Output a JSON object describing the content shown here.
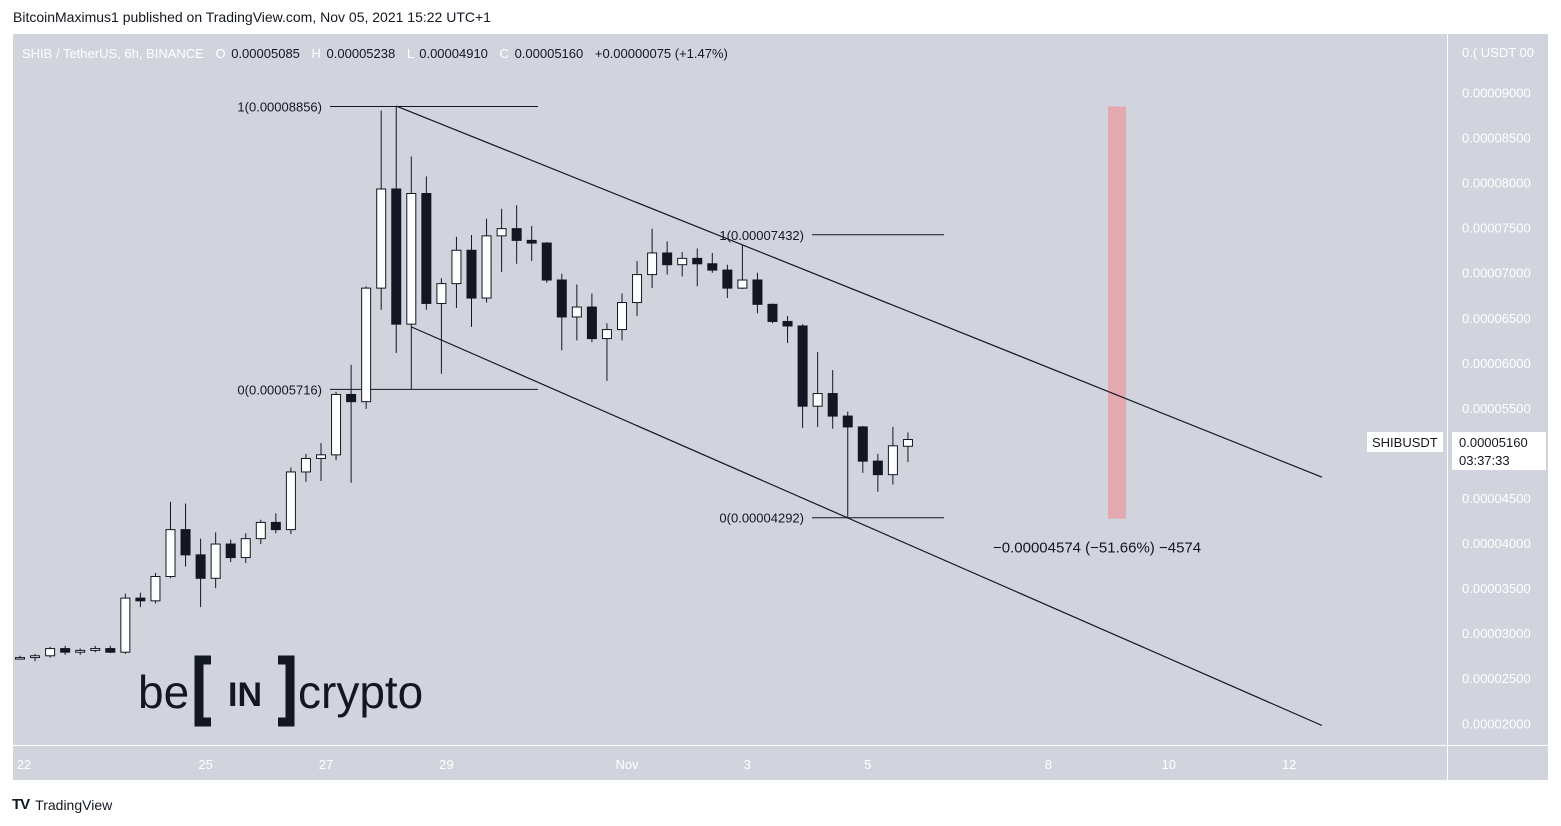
{
  "header": {
    "publisher": "BitcoinMaximus1 published on TradingView.com, Nov 05, 2021 15:22 UTC+1"
  },
  "colors": {
    "background": "#d1d4dc",
    "candle_up": "#ffffff",
    "candle_down": "#131722",
    "target_zone": "#e8a0a8"
  },
  "chart_data": {
    "type": "candlestick",
    "symbol_line": {
      "symbol": "SHIB / TetherUS, 6h, BINANCE",
      "open_label": "O",
      "open": "0.00005085",
      "high_label": "H",
      "high": "0.00005238",
      "low_label": "L",
      "low": "0.00004910",
      "close_label": "C",
      "close": "0.00005160",
      "change": "+0.00000075 (+1.47%)"
    },
    "currency_label": "0.( USDT 00",
    "y_axis": {
      "range": [
        1.77e-05,
        9.66e-05
      ],
      "ticks": [
        "0.00009000",
        "0.00008500",
        "0.00008000",
        "0.00007500",
        "0.00007000",
        "0.00006500",
        "0.00006000",
        "0.00005500",
        "0.00005000",
        "0.00004500",
        "0.00004000",
        "0.00003500",
        "0.00003000",
        "0.00002500",
        "0.00002000"
      ]
    },
    "x_axis": {
      "ticks": [
        {
          "label": "22",
          "day": 22
        },
        {
          "label": "25",
          "day": 25
        },
        {
          "label": "27",
          "day": 27
        },
        {
          "label": "29",
          "day": 29
        },
        {
          "label": "Nov",
          "day": 32
        },
        {
          "label": "3",
          "day": 34
        },
        {
          "label": "5",
          "day": 36
        },
        {
          "label": "8",
          "day": 39
        },
        {
          "label": "10",
          "day": 41
        },
        {
          "label": "12",
          "day": 43
        }
      ]
    },
    "candles": [
      {
        "o": 2.73e-05,
        "h": 2.76e-05,
        "l": 2.72e-05,
        "c": 2.74e-05
      },
      {
        "o": 2.74e-05,
        "h": 2.78e-05,
        "l": 2.7e-05,
        "c": 2.76e-05
      },
      {
        "o": 2.76e-05,
        "h": 2.86e-05,
        "l": 2.74e-05,
        "c": 2.84e-05
      },
      {
        "o": 2.84e-05,
        "h": 2.87e-05,
        "l": 2.77e-05,
        "c": 2.8e-05
      },
      {
        "o": 2.8e-05,
        "h": 2.84e-05,
        "l": 2.77e-05,
        "c": 2.82e-05
      },
      {
        "o": 2.82e-05,
        "h": 2.87e-05,
        "l": 2.8e-05,
        "c": 2.84e-05
      },
      {
        "o": 2.84e-05,
        "h": 2.87e-05,
        "l": 2.79e-05,
        "c": 2.8e-05
      },
      {
        "o": 2.8e-05,
        "h": 3.45e-05,
        "l": 2.78e-05,
        "c": 3.4e-05
      },
      {
        "o": 3.4e-05,
        "h": 3.46e-05,
        "l": 3.3e-05,
        "c": 3.37e-05
      },
      {
        "o": 3.37e-05,
        "h": 3.68e-05,
        "l": 3.34e-05,
        "c": 3.64e-05
      },
      {
        "o": 3.64e-05,
        "h": 4.47e-05,
        "l": 3.62e-05,
        "c": 4.16e-05
      },
      {
        "o": 4.16e-05,
        "h": 4.45e-05,
        "l": 3.75e-05,
        "c": 3.88e-05
      },
      {
        "o": 3.88e-05,
        "h": 4.06e-05,
        "l": 3.3e-05,
        "c": 3.62e-05
      },
      {
        "o": 3.62e-05,
        "h": 4.13e-05,
        "l": 3.51e-05,
        "c": 4e-05
      },
      {
        "o": 4e-05,
        "h": 4.05e-05,
        "l": 3.8e-05,
        "c": 3.85e-05
      },
      {
        "o": 3.85e-05,
        "h": 4.12e-05,
        "l": 3.79e-05,
        "c": 4.06e-05
      },
      {
        "o": 4.06e-05,
        "h": 4.27e-05,
        "l": 4e-05,
        "c": 4.24e-05
      },
      {
        "o": 4.24e-05,
        "h": 4.34e-05,
        "l": 4.12e-05,
        "c": 4.16e-05
      },
      {
        "o": 4.16e-05,
        "h": 4.85e-05,
        "l": 4.11e-05,
        "c": 4.8e-05
      },
      {
        "o": 4.8e-05,
        "h": 5e-05,
        "l": 4.69e-05,
        "c": 4.95e-05
      },
      {
        "o": 4.95e-05,
        "h": 5.12e-05,
        "l": 4.7e-05,
        "c": 4.99e-05
      },
      {
        "o": 4.99e-05,
        "h": 5.69e-05,
        "l": 4.93e-05,
        "c": 5.66e-05
      },
      {
        "o": 5.66e-05,
        "h": 5.99e-05,
        "l": 4.68e-05,
        "c": 5.58e-05
      },
      {
        "o": 5.58e-05,
        "h": 6.86e-05,
        "l": 5.5e-05,
        "c": 6.84e-05
      },
      {
        "o": 6.84e-05,
        "h": 8.81e-05,
        "l": 6.6e-05,
        "c": 7.94e-05
      },
      {
        "o": 7.94e-05,
        "h": 8.86e-05,
        "l": 6.12e-05,
        "c": 6.44e-05
      },
      {
        "o": 6.44e-05,
        "h": 8.3e-05,
        "l": 5.72e-05,
        "c": 7.89e-05
      },
      {
        "o": 7.89e-05,
        "h": 8.08e-05,
        "l": 6.6e-05,
        "c": 6.67e-05
      },
      {
        "o": 6.67e-05,
        "h": 6.95e-05,
        "l": 5.89e-05,
        "c": 6.89e-05
      },
      {
        "o": 6.89e-05,
        "h": 7.41e-05,
        "l": 6.62e-05,
        "c": 7.26e-05
      },
      {
        "o": 7.26e-05,
        "h": 7.43e-05,
        "l": 6.41e-05,
        "c": 6.73e-05
      },
      {
        "o": 6.73e-05,
        "h": 7.61e-05,
        "l": 6.68e-05,
        "c": 7.42e-05
      },
      {
        "o": 7.42e-05,
        "h": 7.72e-05,
        "l": 7.02e-05,
        "c": 7.5e-05
      },
      {
        "o": 7.5e-05,
        "h": 7.76e-05,
        "l": 7.11e-05,
        "c": 7.37e-05
      },
      {
        "o": 7.37e-05,
        "h": 7.53e-05,
        "l": 7.14e-05,
        "c": 7.34e-05
      },
      {
        "o": 7.34e-05,
        "h": 7.35e-05,
        "l": 6.9e-05,
        "c": 6.93e-05
      },
      {
        "o": 6.93e-05,
        "h": 7e-05,
        "l": 6.15e-05,
        "c": 6.52e-05
      },
      {
        "o": 6.52e-05,
        "h": 6.88e-05,
        "l": 6.26e-05,
        "c": 6.63e-05
      },
      {
        "o": 6.63e-05,
        "h": 6.78e-05,
        "l": 6.24e-05,
        "c": 6.28e-05
      },
      {
        "o": 6.28e-05,
        "h": 6.45e-05,
        "l": 5.81e-05,
        "c": 6.38e-05
      },
      {
        "o": 6.38e-05,
        "h": 6.78e-05,
        "l": 6.26e-05,
        "c": 6.68e-05
      },
      {
        "o": 6.68e-05,
        "h": 7.14e-05,
        "l": 6.53e-05,
        "c": 6.99e-05
      },
      {
        "o": 6.99e-05,
        "h": 7.5e-05,
        "l": 6.84e-05,
        "c": 7.23e-05
      },
      {
        "o": 7.23e-05,
        "h": 7.36e-05,
        "l": 6.99e-05,
        "c": 7.1e-05
      },
      {
        "o": 7.1e-05,
        "h": 7.24e-05,
        "l": 6.97e-05,
        "c": 7.17e-05
      },
      {
        "o": 7.17e-05,
        "h": 7.28e-05,
        "l": 6.86e-05,
        "c": 7.11e-05
      },
      {
        "o": 7.11e-05,
        "h": 7.23e-05,
        "l": 7.01e-05,
        "c": 7.04e-05
      },
      {
        "o": 7.04e-05,
        "h": 7.1e-05,
        "l": 6.73e-05,
        "c": 6.84e-05
      },
      {
        "o": 6.84e-05,
        "h": 7.32e-05,
        "l": 6.83e-05,
        "c": 6.93e-05
      },
      {
        "o": 6.93e-05,
        "h": 7.01e-05,
        "l": 6.56e-05,
        "c": 6.66e-05
      },
      {
        "o": 6.66e-05,
        "h": 6.67e-05,
        "l": 6.45e-05,
        "c": 6.47e-05
      },
      {
        "o": 6.47e-05,
        "h": 6.53e-05,
        "l": 6.23e-05,
        "c": 6.42e-05
      },
      {
        "o": 6.42e-05,
        "h": 6.44e-05,
        "l": 5.29e-05,
        "c": 5.53e-05
      },
      {
        "o": 5.53e-05,
        "h": 6.13e-05,
        "l": 5.3e-05,
        "c": 5.67e-05
      },
      {
        "o": 5.67e-05,
        "h": 5.93e-05,
        "l": 5.28e-05,
        "c": 5.42e-05
      },
      {
        "o": 5.42e-05,
        "h": 5.47e-05,
        "l": 4.29e-05,
        "c": 5.3e-05
      },
      {
        "o": 5.3e-05,
        "h": 5.31e-05,
        "l": 4.79e-05,
        "c": 4.92e-05
      },
      {
        "o": 4.92e-05,
        "h": 5e-05,
        "l": 4.58e-05,
        "c": 4.77e-05
      },
      {
        "o": 4.77e-05,
        "h": 5.3e-05,
        "l": 4.66e-05,
        "c": 5.09e-05
      },
      {
        "o": 5.085e-05,
        "h": 5.238e-05,
        "l": 4.91e-05,
        "c": 5.16e-05
      }
    ],
    "fib_levels": [
      {
        "label": "1(0.00008856)",
        "value": 8.856e-05
      },
      {
        "label": "0(0.00005716)",
        "value": 5.716e-05
      },
      {
        "label": "1(0.00007432)",
        "value": 7.432e-05
      },
      {
        "label": "0(0.00004292)",
        "value": 4.292e-05
      }
    ],
    "measurement": {
      "text": "−0.00004574 (−51.66%) −4574",
      "from": 8.856e-05,
      "to": 4.282e-05
    },
    "price_label": {
      "symbol": "SHIBUSDT",
      "price": "0.00005160",
      "countdown": "03:37:33"
    },
    "watermark": {
      "left": "be",
      "center": "IN",
      "right": "crypto"
    }
  },
  "footer": {
    "brand_mark": "TV",
    "brand": "TradingView"
  }
}
